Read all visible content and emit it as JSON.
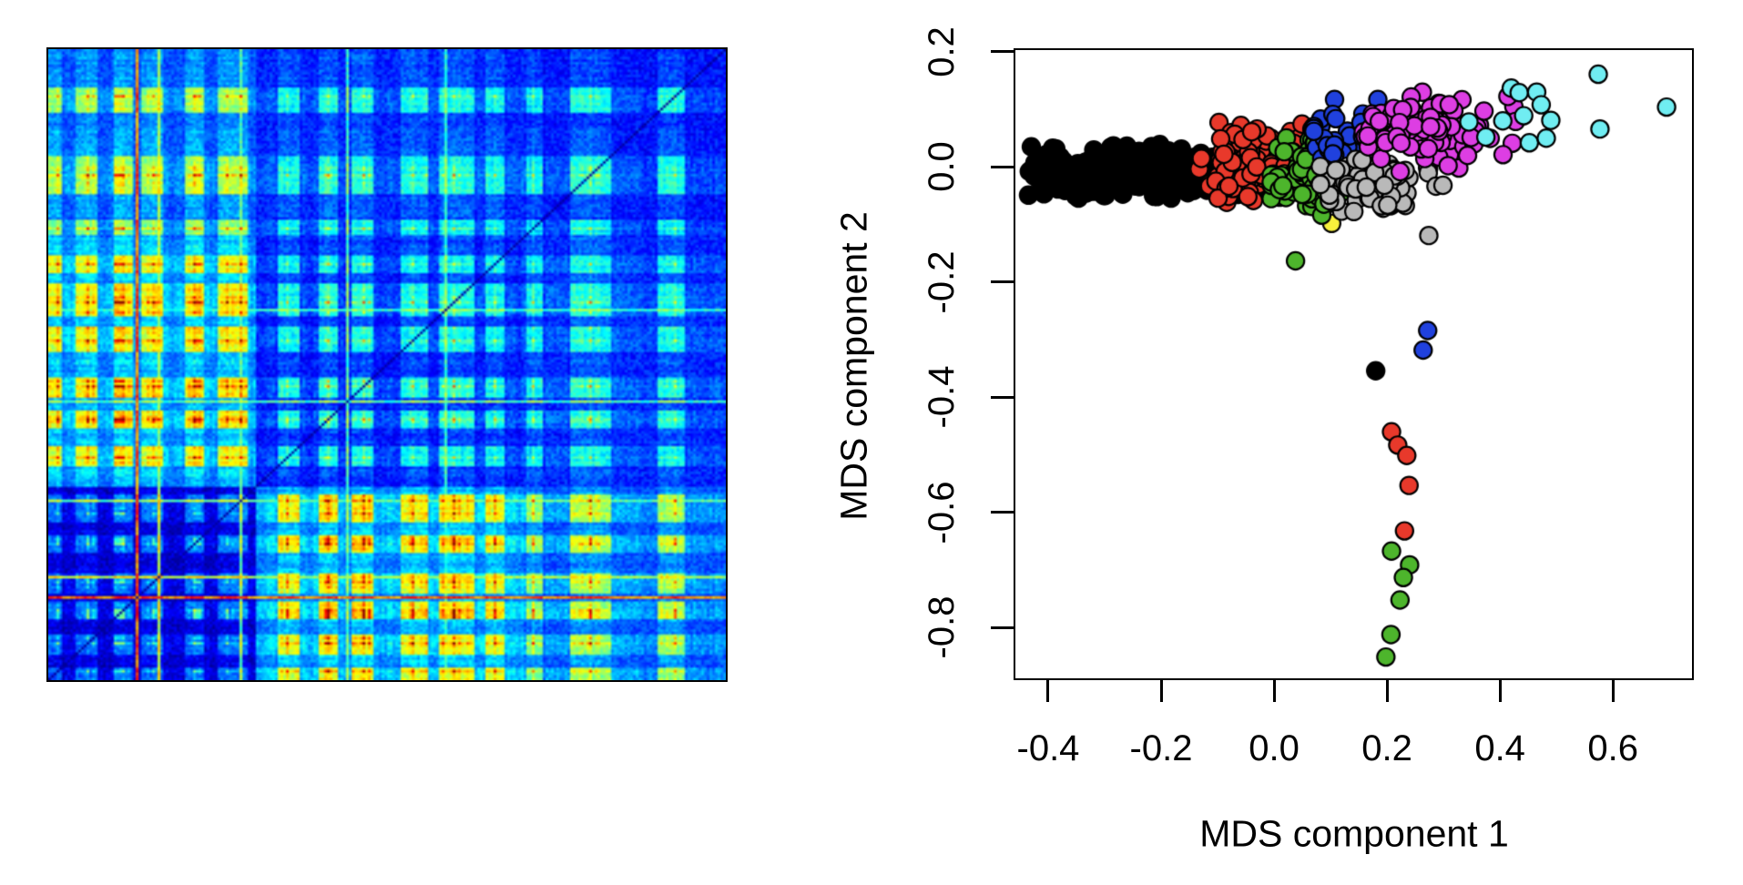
{
  "figure": {
    "background": "#ffffff",
    "panel_count": 2
  },
  "palette": {
    "black": "#000000",
    "red": "#e8392b",
    "green": "#4db52c",
    "blue": "#2041dd",
    "cyan": "#70edf2",
    "magenta": "#dd3ee3",
    "yellow": "#f7f03c",
    "gray": "#b9b9b9"
  },
  "chart_data": [
    {
      "id": "sample-distance-heatmap",
      "type": "heatmap",
      "colormap": "jet",
      "rows_flipped": true,
      "n": 248,
      "group_breaks": [
        0.305,
        0.7
      ],
      "block_base": {
        "AA": 0.06,
        "AB": 0.22,
        "AC": 0.18,
        "BB": 0.12,
        "BC": 0.14,
        "CC": 0.12
      },
      "block_amp": {
        "AA": 0.25,
        "AB": 0.58,
        "AC": 0.52,
        "BB": 0.4,
        "BC": 0.38,
        "CC": 0.42
      },
      "act_base": 0.22,
      "act_jitter": 0.16,
      "act_bands": [
        [
          0.0,
          0.022,
          0.8
        ],
        [
          0.04,
          0.072,
          0.85
        ],
        [
          0.098,
          0.126,
          0.9
        ],
        [
          0.138,
          0.168,
          0.85
        ],
        [
          0.2,
          0.228,
          0.88
        ],
        [
          0.248,
          0.295,
          0.82
        ],
        [
          0.34,
          0.372,
          0.8
        ],
        [
          0.398,
          0.428,
          0.85
        ],
        [
          0.448,
          0.478,
          0.9
        ],
        [
          0.52,
          0.56,
          0.82
        ],
        [
          0.578,
          0.63,
          0.85
        ],
        [
          0.645,
          0.672,
          0.78
        ],
        [
          0.705,
          0.728,
          0.75
        ],
        [
          0.77,
          0.832,
          0.82
        ],
        [
          0.9,
          0.94,
          0.78
        ]
      ],
      "act_spikes": [
        [
          0.012,
          0.97
        ],
        [
          0.055,
          1.0
        ],
        [
          0.108,
          1.0
        ],
        [
          0.152,
          0.97
        ],
        [
          0.212,
          1.0
        ],
        [
          0.262,
          0.97
        ],
        [
          0.283,
          1.0
        ],
        [
          0.352,
          0.95
        ],
        [
          0.412,
          1.0
        ],
        [
          0.462,
          1.0
        ],
        [
          0.535,
          0.97
        ],
        [
          0.598,
          1.0
        ],
        [
          0.658,
          0.95
        ],
        [
          0.712,
          0.95
        ],
        [
          0.798,
          1.0
        ],
        [
          0.922,
          0.95
        ]
      ],
      "outlier_lines": [
        {
          "t": 0.128,
          "level": 0.68
        },
        {
          "t": 0.163,
          "level": 0.5
        },
        {
          "t": 0.284,
          "level": 0.42
        },
        {
          "t": 0.44,
          "level": 0.38
        },
        {
          "t": 0.585,
          "level": 0.38
        }
      ],
      "crossing_boost": 0.25,
      "cell_noise": 0.1,
      "diagonal_value": 0.03,
      "seed": 20
    },
    {
      "id": "mds-scatter",
      "type": "scatter",
      "xlabel": "MDS component 1",
      "ylabel": "MDS component 2",
      "xlim": [
        -0.458,
        0.74
      ],
      "ylim": [
        -0.888,
        0.203
      ],
      "xticks": [
        -0.4,
        -0.2,
        0.0,
        0.2,
        0.4,
        0.6
      ],
      "xtick_labels": [
        "-0.4",
        "-0.2",
        "0.0",
        "0.2",
        "0.4",
        "0.6"
      ],
      "yticks": [
        0.2,
        0.0,
        -0.2,
        -0.4,
        -0.6,
        -0.8
      ],
      "ytick_labels": [
        "0.2",
        "0.0",
        "-0.2",
        "-0.4",
        "-0.6",
        "-0.8"
      ],
      "grid": false,
      "legend": false,
      "point_radius": 9.6,
      "point_stroke": "#000000",
      "point_stroke_width": 2.2,
      "seed": 11,
      "clusters": [
        {
          "name": "cluster-black",
          "color": "#000000",
          "n": 380,
          "cx": -0.205,
          "cy": -0.008,
          "sx": 0.088,
          "sy": 0.021,
          "uniform_frac": 0.45,
          "xmin": -0.435,
          "xmax": -0.005,
          "ymin": -0.072,
          "ymax": 0.055
        },
        {
          "name": "cluster-red",
          "color": "#e8392b",
          "n": 120,
          "cx": -0.028,
          "cy": 0.006,
          "sx": 0.046,
          "sy": 0.032,
          "uniform_frac": 0.3,
          "xmin": -0.138,
          "xmax": 0.078,
          "ymin": -0.082,
          "ymax": 0.102
        },
        {
          "name": "cluster-yellow",
          "color": "#f7f03c",
          "points": [
            [
              0.018,
              -0.012
            ],
            [
              0.079,
              -0.072
            ],
            [
              0.102,
              -0.098
            ]
          ]
        },
        {
          "name": "cluster-green",
          "color": "#4db52c",
          "n": 92,
          "cx": 0.065,
          "cy": -0.018,
          "sx": 0.037,
          "sy": 0.033,
          "uniform_frac": 0.3,
          "xmin": -0.005,
          "xmax": 0.155,
          "ymin": -0.106,
          "ymax": 0.09
        },
        {
          "name": "cluster-blue",
          "color": "#2041dd",
          "n": 33,
          "cx": 0.115,
          "cy": 0.058,
          "sx": 0.033,
          "sy": 0.027,
          "uniform_frac": 0.3,
          "xmin": 0.045,
          "xmax": 0.185,
          "ymin": -0.002,
          "ymax": 0.123
        },
        {
          "name": "cluster-gray",
          "color": "#b9b9b9",
          "n": 96,
          "cx": 0.168,
          "cy": -0.028,
          "sx": 0.047,
          "sy": 0.028,
          "uniform_frac": 0.3,
          "xmin": 0.082,
          "xmax": 0.3,
          "ymin": -0.1,
          "ymax": 0.04
        },
        {
          "name": "cluster-magenta",
          "color": "#dd3ee3",
          "n": 98,
          "cx": 0.268,
          "cy": 0.058,
          "sx": 0.052,
          "sy": 0.033,
          "uniform_frac": 0.3,
          "xmin": 0.158,
          "xmax": 0.432,
          "ymin": -0.024,
          "ymax": 0.148
        },
        {
          "name": "cluster-cyan",
          "color": "#70edf2",
          "points": [
            [
              0.345,
              0.078
            ],
            [
              0.375,
              0.052
            ],
            [
              0.405,
              0.08
            ],
            [
              0.42,
              0.137
            ],
            [
              0.434,
              0.129
            ],
            [
              0.442,
              0.089
            ],
            [
              0.452,
              0.042
            ],
            [
              0.465,
              0.13
            ],
            [
              0.473,
              0.108
            ],
            [
              0.482,
              0.05
            ],
            [
              0.49,
              0.081
            ],
            [
              0.574,
              0.161
            ],
            [
              0.577,
              0.066
            ],
            [
              0.695,
              0.104
            ]
          ]
        }
      ],
      "outlier_points": [
        {
          "color": "#b9b9b9",
          "x": 0.274,
          "y": -0.119
        },
        {
          "color": "#4db52c",
          "x": 0.038,
          "y": -0.163
        },
        {
          "color": "#2041dd",
          "x": 0.272,
          "y": -0.284
        },
        {
          "color": "#2041dd",
          "x": 0.264,
          "y": -0.318
        },
        {
          "color": "#000000",
          "x": 0.18,
          "y": -0.354
        },
        {
          "color": "#e8392b",
          "x": 0.208,
          "y": -0.46
        },
        {
          "color": "#e8392b",
          "x": 0.219,
          "y": -0.483
        },
        {
          "color": "#e8392b",
          "x": 0.235,
          "y": -0.501
        },
        {
          "color": "#e8392b",
          "x": 0.239,
          "y": -0.553
        },
        {
          "color": "#e8392b",
          "x": 0.231,
          "y": -0.632
        },
        {
          "color": "#4db52c",
          "x": 0.208,
          "y": -0.667
        },
        {
          "color": "#4db52c",
          "x": 0.24,
          "y": -0.691
        },
        {
          "color": "#4db52c",
          "x": 0.229,
          "y": -0.713
        },
        {
          "color": "#4db52c",
          "x": 0.223,
          "y": -0.752
        },
        {
          "color": "#4db52c",
          "x": 0.207,
          "y": -0.812
        },
        {
          "color": "#4db52c",
          "x": 0.198,
          "y": -0.851
        }
      ]
    }
  ]
}
